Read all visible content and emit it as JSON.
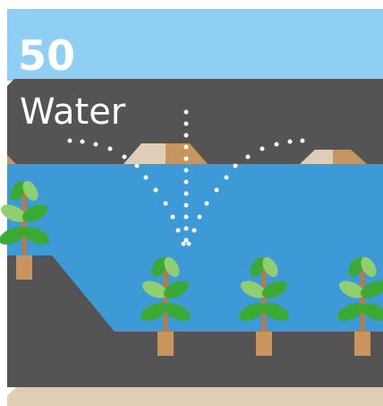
{
  "badge": {
    "number": "50",
    "label": "Water"
  }
}
